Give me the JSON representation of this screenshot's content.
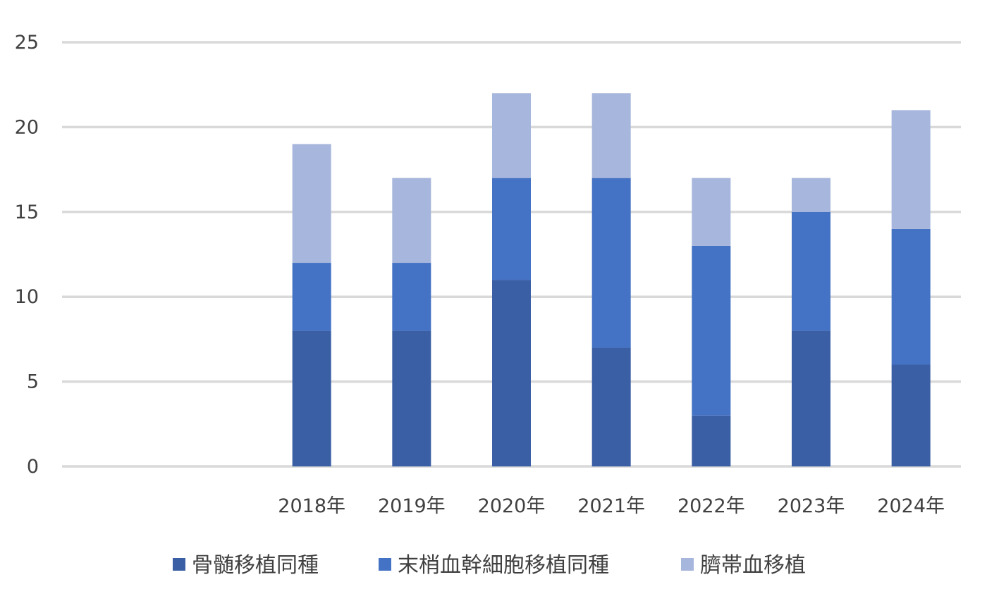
{
  "chart_data": {
    "type": "bar",
    "stacked": true,
    "categories": [
      "",
      "",
      "2018年",
      "2019年",
      "2020年",
      "2021年",
      "2022年",
      "2023年",
      "2024年"
    ],
    "series": [
      {
        "name": "骨髄移植同種",
        "values": [
          0,
          0,
          8,
          8,
          11,
          7,
          3,
          8,
          6
        ],
        "color": "#3a5fa5"
      },
      {
        "name": "末梢血幹細胞移植同種",
        "values": [
          0,
          0,
          4,
          4,
          6,
          10,
          10,
          7,
          8
        ],
        "color": "#4472c4"
      },
      {
        "name": "臍帯血移植",
        "values": [
          0,
          0,
          7,
          5,
          5,
          5,
          4,
          2,
          7
        ],
        "color": "#a7b6dc"
      }
    ],
    "ylim": [
      0,
      25
    ],
    "yticks": [
      "0",
      "5",
      "10",
      "15",
      "20",
      "25"
    ],
    "grid": true,
    "gridColor": "#d9d9d9",
    "legend_position": "bottom"
  }
}
